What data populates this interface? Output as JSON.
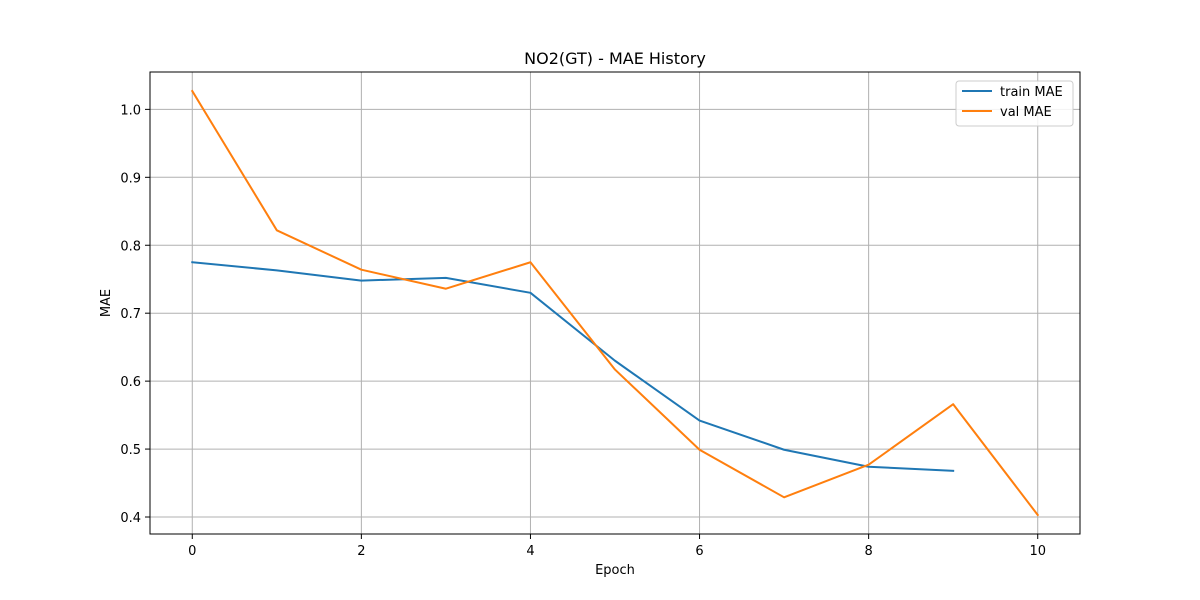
{
  "chart_data": {
    "type": "line",
    "title": "NO2(GT) - MAE History",
    "xlabel": "Epoch",
    "ylabel": "MAE",
    "xlim": [
      -0.5,
      10.5
    ],
    "ylim": [
      0.375,
      1.055
    ],
    "xticks": [
      0,
      2,
      4,
      6,
      8,
      10
    ],
    "yticks": [
      0.4,
      0.5,
      0.6,
      0.7,
      0.8,
      0.9,
      1.0
    ],
    "xtick_labels": [
      "0",
      "2",
      "4",
      "6",
      "8",
      "10"
    ],
    "ytick_labels": [
      "0.4",
      "0.5",
      "0.6",
      "0.7",
      "0.8",
      "0.9",
      "1.0"
    ],
    "grid": true,
    "legend_position": "top-right",
    "series": [
      {
        "name": "train MAE",
        "color": "#1f77b4",
        "x": [
          0,
          1,
          2,
          3,
          4,
          5,
          6,
          7,
          8,
          9
        ],
        "y": [
          0.775,
          0.763,
          0.748,
          0.752,
          0.73,
          0.63,
          0.542,
          0.499,
          0.474,
          0.468
        ]
      },
      {
        "name": "val MAE",
        "color": "#ff7f0e",
        "x": [
          0,
          1,
          2,
          3,
          4,
          5,
          6,
          7,
          8,
          9,
          10
        ],
        "y": [
          1.027,
          0.822,
          0.764,
          0.736,
          0.775,
          0.617,
          0.499,
          0.429,
          0.477,
          0.566,
          0.403
        ]
      }
    ]
  }
}
